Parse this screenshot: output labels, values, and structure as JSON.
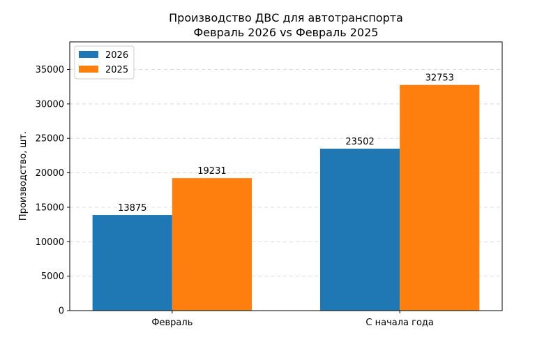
{
  "chart_data": {
    "type": "bar",
    "title_line1": "Производство ДВС для автотранспорта",
    "title_line2": "Февраль 2026 vs Февраль 2025",
    "xlabel": "",
    "ylabel": "Производство, шт.",
    "categories": [
      "Февраль",
      "С начала года"
    ],
    "series": [
      {
        "name": "2026",
        "color": "#1f77b4",
        "values": [
          13875,
          23502
        ]
      },
      {
        "name": "2025",
        "color": "#ff7f0e",
        "values": [
          19231,
          32753
        ]
      }
    ],
    "ylim": [
      0,
      39000
    ],
    "yticks": [
      0,
      5000,
      10000,
      15000,
      20000,
      25000,
      30000,
      35000
    ],
    "grid": true,
    "legend": "top-left"
  }
}
